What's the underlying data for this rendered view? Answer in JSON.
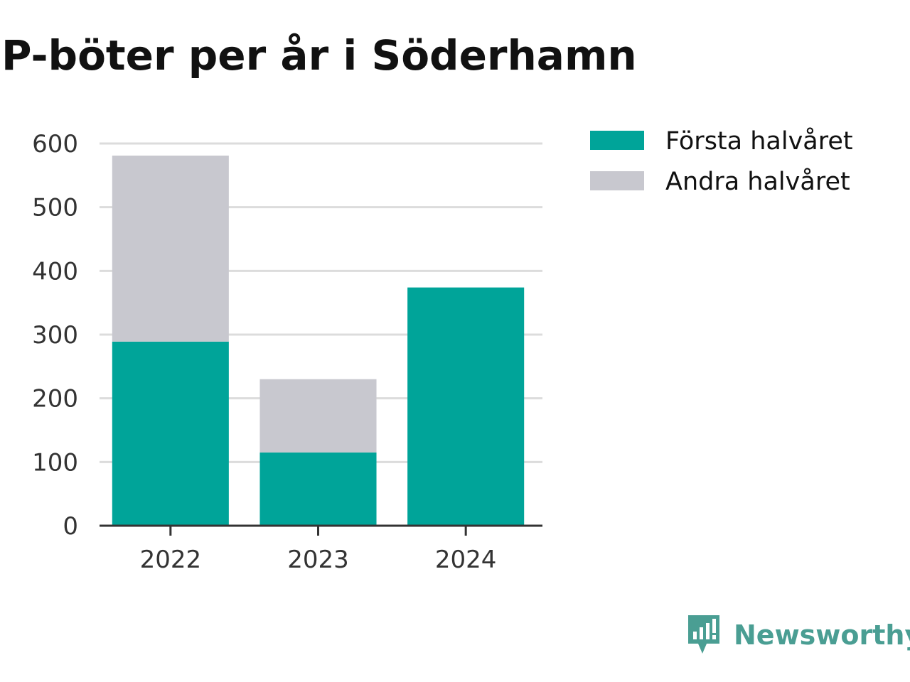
{
  "page": {
    "title": "P-böter per år i Söderhamn"
  },
  "chart_data": {
    "type": "bar",
    "stacked": true,
    "title": "P-böter per år i Söderhamn",
    "xlabel": "",
    "ylabel": "",
    "categories": [
      "2022",
      "2023",
      "2024"
    ],
    "series": [
      {
        "name": "Första halvåret",
        "color": "#00a499",
        "values": [
          289,
          115,
          374
        ]
      },
      {
        "name": "Andra halvåret",
        "color": "#c8c8cf",
        "values": [
          292,
          115,
          0
        ]
      }
    ],
    "ylim": [
      0,
      600
    ],
    "yticks": [
      "0",
      "100",
      "200",
      "300",
      "400",
      "500",
      "600"
    ],
    "grid": true,
    "legend_position": "right-top"
  },
  "brand": {
    "name": "Newsworthy",
    "icon": "newsworthy-logo-icon",
    "color": "#4a9e93"
  }
}
